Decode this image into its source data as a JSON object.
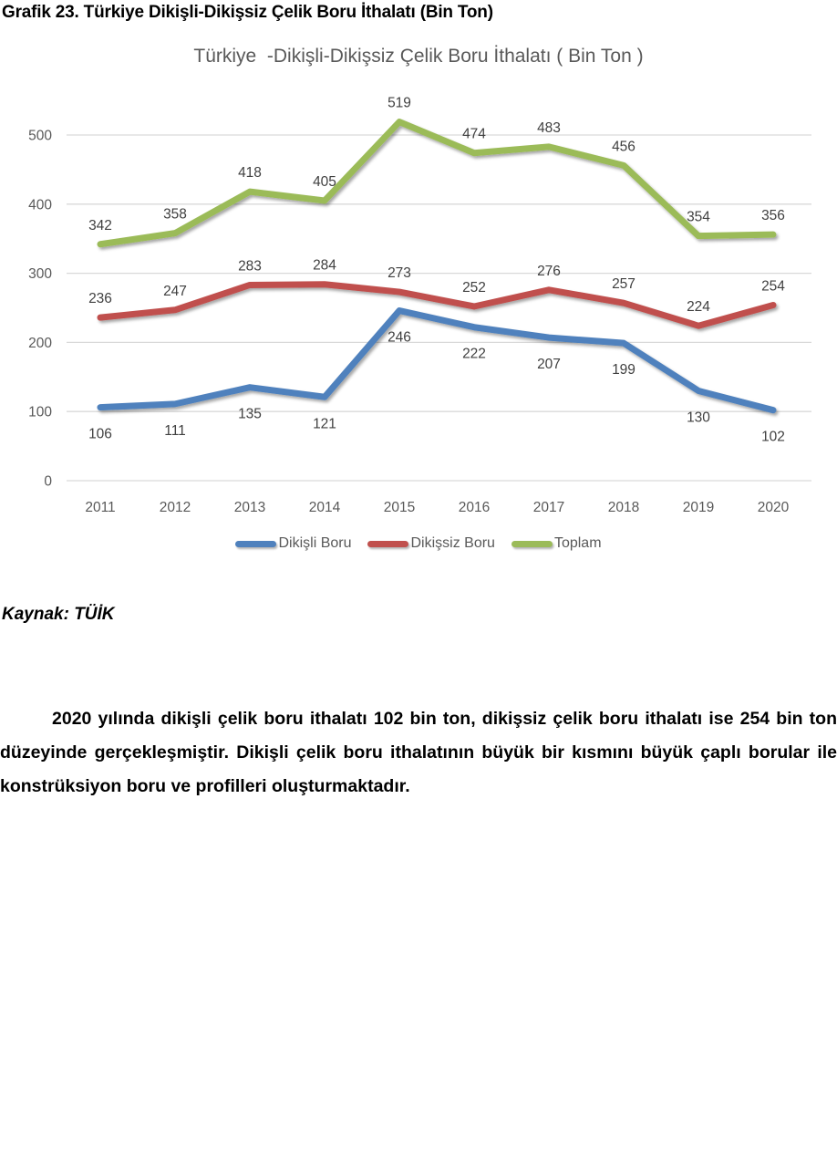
{
  "document": {
    "heading": "Grafik 23. Türkiye Dikişli-Dikişsiz Çelik Boru İthalatı (Bin Ton)",
    "source_label": "Kaynak: TÜİK",
    "paragraph": "2020 yılında dikişli çelik boru ithalatı 102 bin ton, dikişsiz çelik boru ithalatı ise 254 bin ton düzeyinde gerçekleşmiştir. Dikişli çelik boru ithalatının büyük bir kısmını büyük çaplı borular ile konstrüksiyon boru ve profilleri oluşturmaktadır."
  },
  "chart_data": {
    "type": "line",
    "title": "Türkiye  -Dikişli-Dikişsiz Çelik Boru İthalatı ( Bin Ton )",
    "categories": [
      "2011",
      "2012",
      "2013",
      "2014",
      "2015",
      "2016",
      "2017",
      "2018",
      "2019",
      "2020"
    ],
    "series": [
      {
        "name": "Dikişli Boru",
        "color": "#4F81BD",
        "label_position": "below",
        "values": [
          106,
          111,
          135,
          121,
          246,
          222,
          207,
          199,
          130,
          102
        ]
      },
      {
        "name": "Dikişsiz Boru",
        "color": "#C0504D",
        "label_position": "above",
        "values": [
          236,
          247,
          283,
          284,
          273,
          252,
          276,
          257,
          224,
          254
        ]
      },
      {
        "name": "Toplam",
        "color": "#9BBB59",
        "label_position": "above",
        "values": [
          342,
          358,
          418,
          405,
          519,
          474,
          483,
          456,
          354,
          356
        ]
      }
    ],
    "xlabel": "",
    "ylabel": "",
    "ylim": [
      0,
      550
    ],
    "yticks": [
      0,
      100,
      200,
      300,
      400,
      500
    ],
    "grid": true,
    "legend_position": "bottom",
    "data_labels": true,
    "colors": {
      "grid": "#D9D9D9",
      "axis_text": "#595959",
      "data_label": "#404040",
      "title_text": "#595959"
    }
  }
}
